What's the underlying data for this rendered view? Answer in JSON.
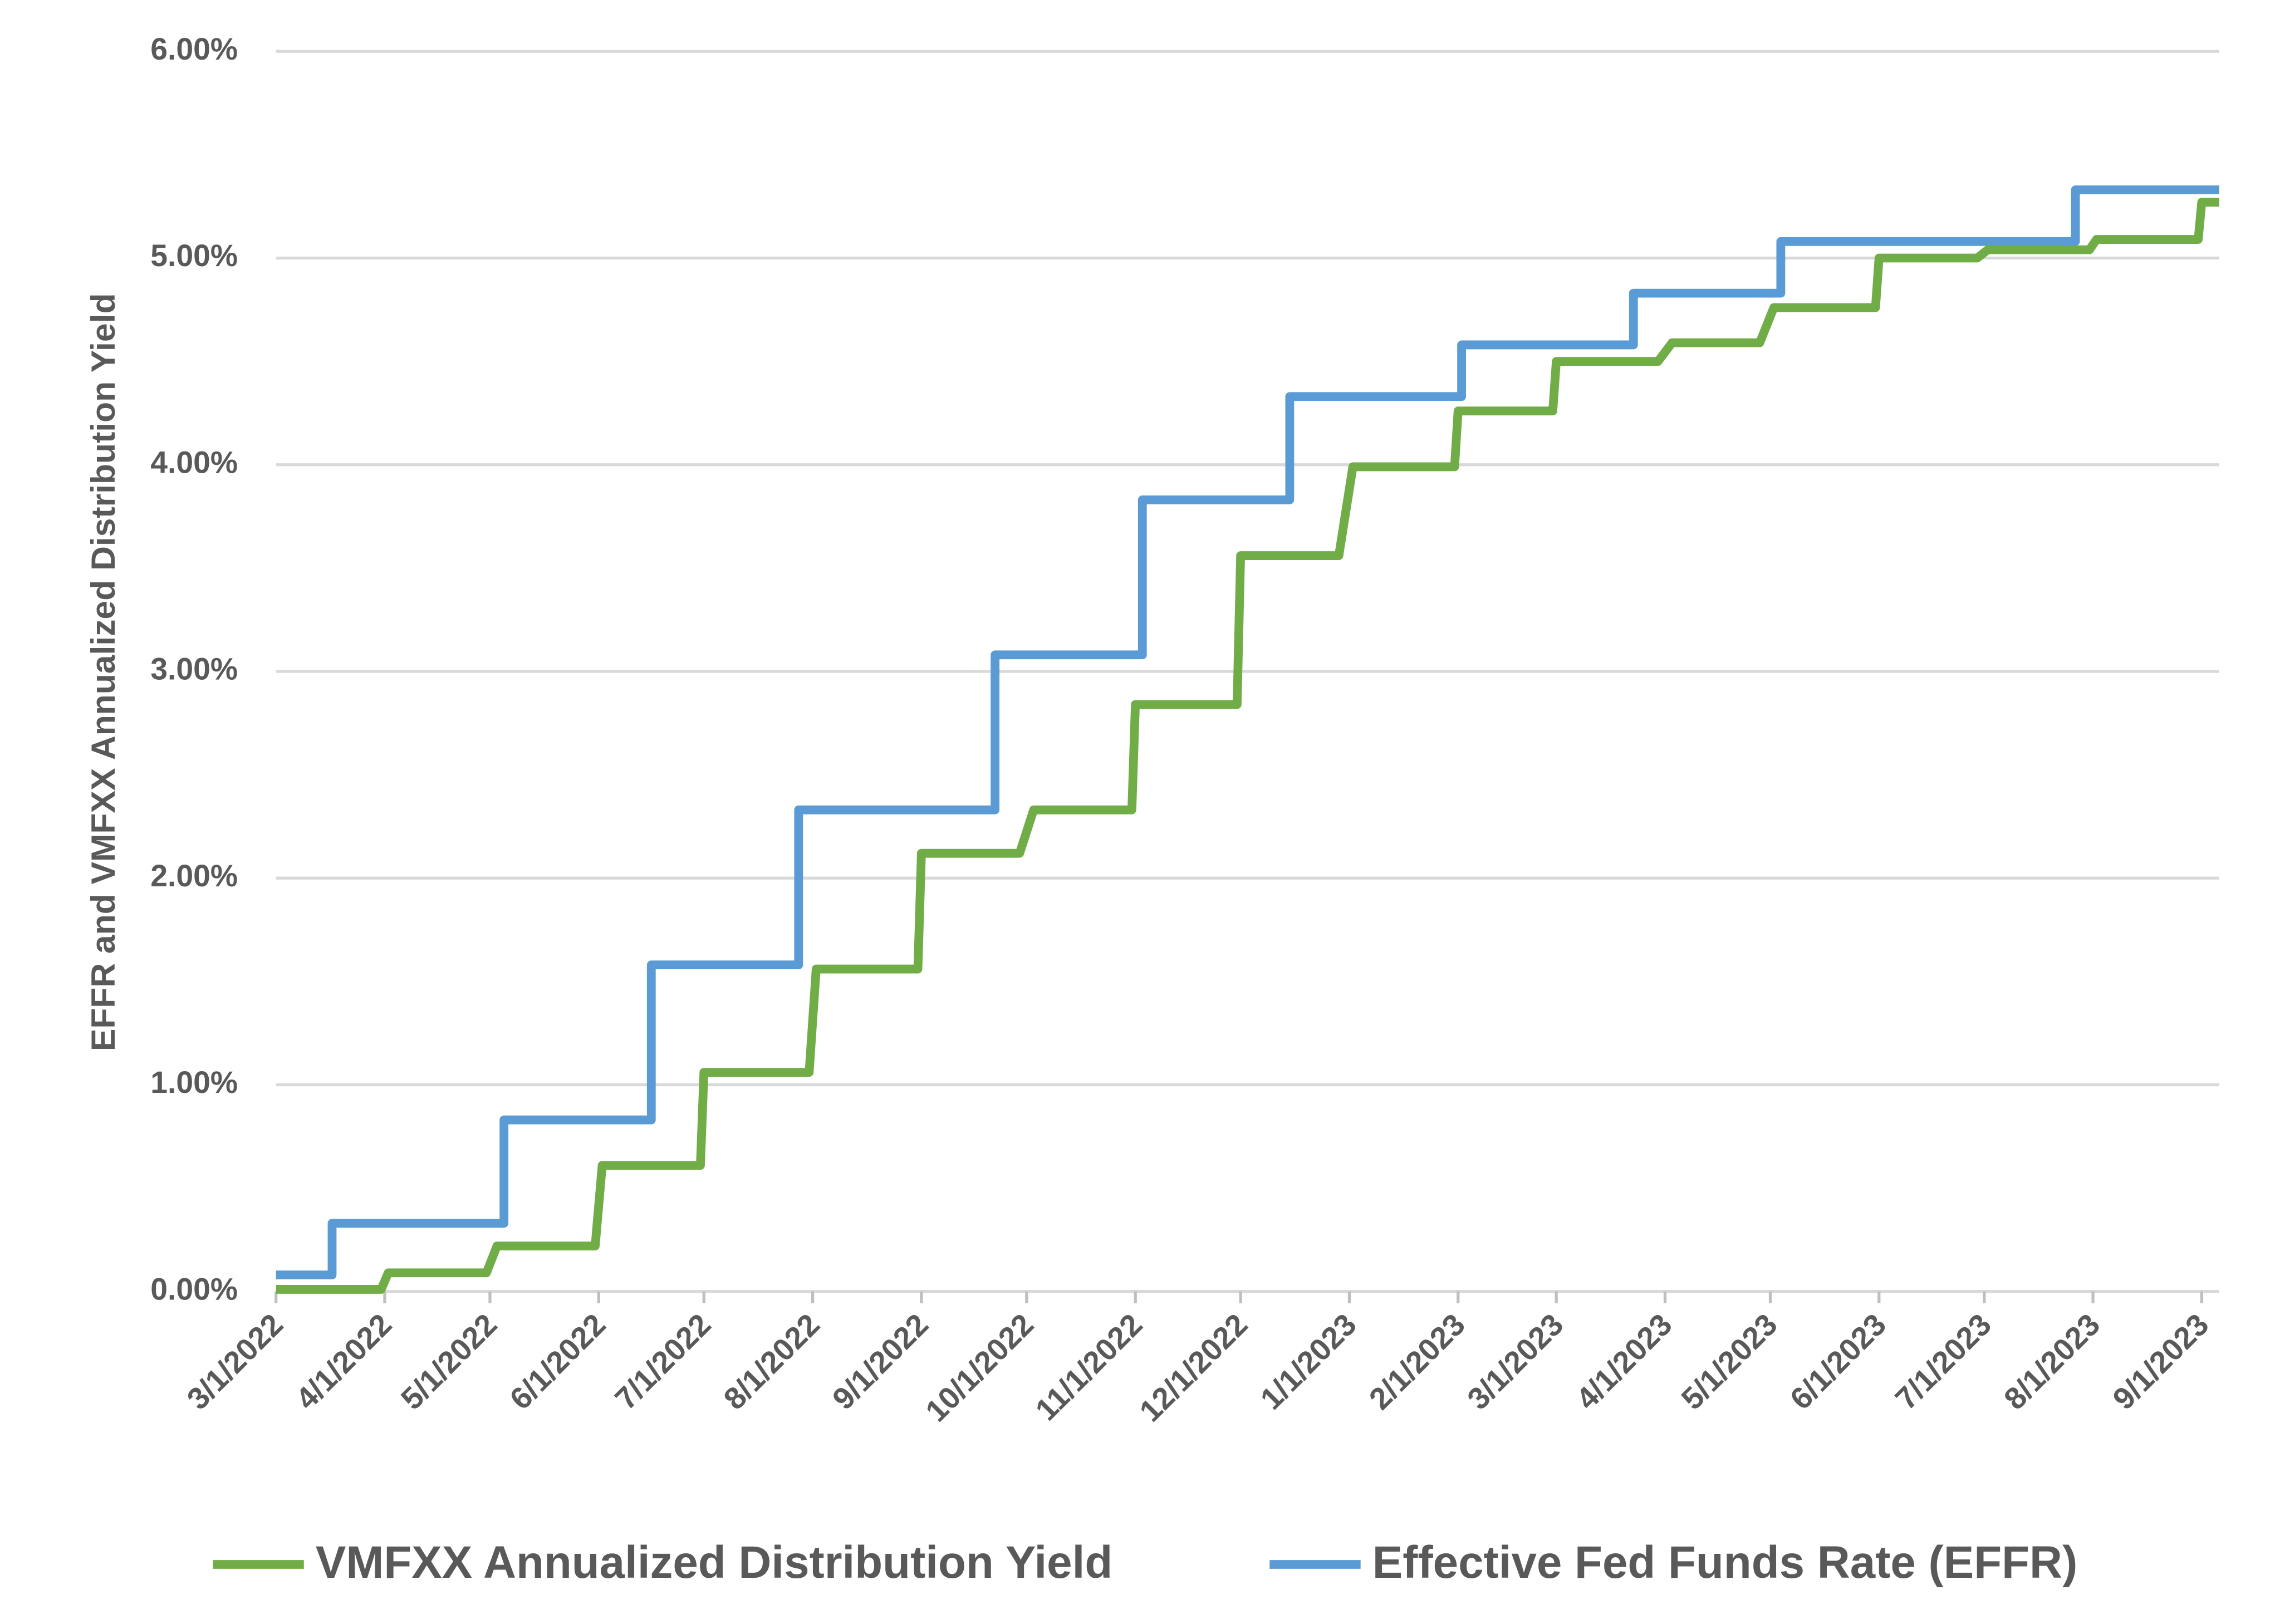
{
  "chart_data": {
    "type": "line",
    "y_label": "EFFR and VMFXX Annualized Distribution Yield",
    "xlim": [
      "3/1/2022",
      "9/6/2023"
    ],
    "xticks": [
      "3/1/2022",
      "4/1/2022",
      "5/1/2022",
      "6/1/2022",
      "7/1/2022",
      "8/1/2022",
      "9/1/2022",
      "10/1/2022",
      "11/1/2022",
      "12/1/2022",
      "1/1/2023",
      "2/1/2023",
      "3/1/2023",
      "4/1/2023",
      "5/1/2023",
      "6/1/2023",
      "7/1/2023",
      "8/1/2023",
      "9/1/2023"
    ],
    "ylim": [
      0,
      6
    ],
    "yticks": [
      {
        "value": 0,
        "label": "0.00%"
      },
      {
        "value": 1,
        "label": "1.00%"
      },
      {
        "value": 2,
        "label": "2.00%"
      },
      {
        "value": 3,
        "label": "3.00%"
      },
      {
        "value": 4,
        "label": "4.00%"
      },
      {
        "value": 5,
        "label": "5.00%"
      },
      {
        "value": 6,
        "label": "6.00%"
      }
    ],
    "grid": true,
    "legend": "bottom",
    "series": [
      {
        "name": "VMFXX Annualized Distribution Yield",
        "color": "#70ad47",
        "x": [
          "3/1/2022",
          "3/31/2022",
          "4/2/2022",
          "4/30/2022",
          "5/3/2022",
          "5/31/2022",
          "6/2/2022",
          "6/30/2022",
          "7/1/2022",
          "7/31/2022",
          "8/2/2022",
          "8/31/2022",
          "9/1/2022",
          "9/29/2022",
          "10/3/2022",
          "10/31/2022",
          "11/1/2022",
          "11/30/2022",
          "12/1/2022",
          "12/29/2022",
          "1/2/2023",
          "1/31/2023",
          "2/1/2023",
          "2/28/2023",
          "3/1/2023",
          "3/30/2023",
          "4/3/2023",
          "4/28/2023",
          "5/2/2023",
          "5/31/2023",
          "6/1/2023",
          "6/29/2023",
          "7/2/2023",
          "7/31/2023",
          "8/2/2023",
          "8/31/2023",
          "9/1/2023",
          "9/6/2023"
        ],
        "values": [
          0.01,
          0.01,
          0.09,
          0.09,
          0.22,
          0.22,
          0.61,
          0.61,
          1.06,
          1.06,
          1.56,
          1.56,
          2.12,
          2.12,
          2.33,
          2.33,
          2.84,
          2.84,
          3.56,
          3.56,
          3.99,
          3.99,
          4.26,
          4.26,
          4.5,
          4.5,
          4.59,
          4.59,
          4.76,
          4.76,
          5.0,
          5.0,
          5.04,
          5.04,
          5.09,
          5.09,
          5.27,
          5.27
        ]
      },
      {
        "name": "Effective Fed Funds Rate (EFFR)",
        "color": "#5b9bd5",
        "x": [
          "3/1/2022",
          "3/17/2022",
          "3/17/2022",
          "5/5/2022",
          "5/5/2022",
          "6/16/2022",
          "6/16/2022",
          "7/28/2022",
          "7/28/2022",
          "9/22/2022",
          "9/22/2022",
          "11/3/2022",
          "11/3/2022",
          "12/15/2022",
          "12/15/2022",
          "2/2/2023",
          "2/2/2023",
          "3/23/2023",
          "3/23/2023",
          "5/4/2023",
          "5/4/2023",
          "7/27/2023",
          "7/27/2023",
          "9/6/2023"
        ],
        "values": [
          0.08,
          0.08,
          0.33,
          0.33,
          0.83,
          0.83,
          1.58,
          1.58,
          2.33,
          2.33,
          3.08,
          3.08,
          3.83,
          3.83,
          4.33,
          4.33,
          4.58,
          4.58,
          4.83,
          4.83,
          5.08,
          5.08,
          5.33,
          5.33
        ]
      }
    ]
  }
}
